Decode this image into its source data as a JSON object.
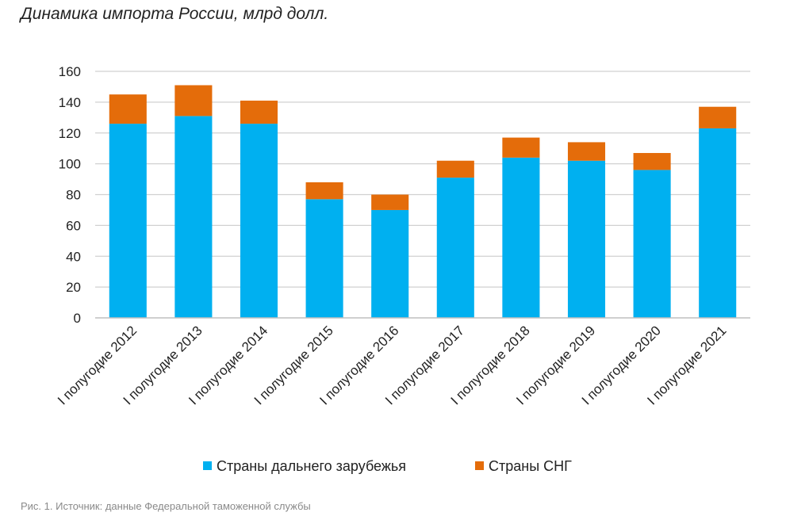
{
  "chart_data": {
    "type": "bar",
    "stacked": true,
    "title": "Динамика импорта России, млрд долл.",
    "categories": [
      "I полугодие 2012",
      "I полугодие 2013",
      "I полугодие 2014",
      "I полугодие 2015",
      "I полугодие 2016",
      "I полугодие 2017",
      "I полугодие 2018",
      "I полугодие 2019",
      "I полугодие 2020",
      "I полугодие 2021"
    ],
    "series": [
      {
        "name": "Страны дальнего зарубежья",
        "color": "#00b0f0",
        "values": [
          126,
          131,
          126,
          77,
          70,
          91,
          104,
          102,
          96,
          123
        ]
      },
      {
        "name": "Страны СНГ",
        "color": "#e46c0a",
        "values": [
          19,
          20,
          15,
          11,
          10,
          11,
          13,
          12,
          11,
          14
        ]
      }
    ],
    "yticks": [
      "0",
      "20",
      "40",
      "60",
      "80",
      "100",
      "120",
      "140",
      "160"
    ],
    "ylim": [
      0,
      160
    ],
    "grid": true,
    "legend_position": "bottom"
  },
  "caption": "Рис. 1. Источник: данные Федеральной таможенной службы"
}
